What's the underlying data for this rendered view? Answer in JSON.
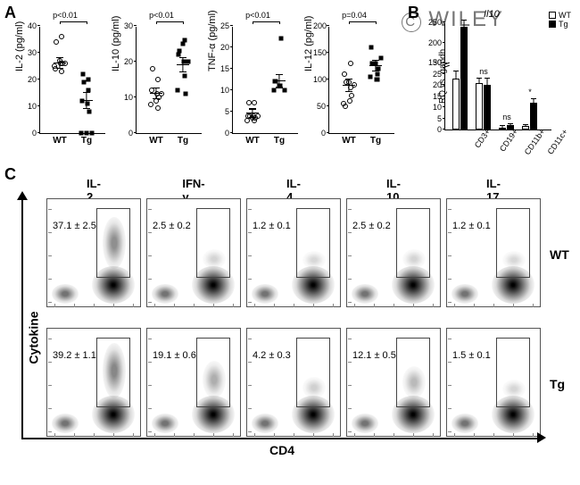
{
  "watermark": "WILEY",
  "panelA": {
    "label": "A",
    "plots": [
      {
        "ylabel": "IL-2 (pg/ml)",
        "pval": "p<0.01",
        "ymax": 40,
        "ytick_step": 10,
        "groups": [
          "WT",
          "Tg"
        ],
        "wt_points": [
          25,
          27,
          26,
          24,
          26,
          36,
          34,
          23,
          26
        ],
        "tg_points": [
          0,
          0,
          0,
          12,
          11,
          16,
          22,
          20,
          8,
          19
        ],
        "wt_mean": 26,
        "wt_err": 2,
        "tg_mean": 12,
        "tg_err": 3
      },
      {
        "ylabel": "IL-10 (pg/ml)",
        "pval": "p<0.01",
        "ymax": 30,
        "ytick_step": 10,
        "groups": [
          "WT",
          "Tg"
        ],
        "wt_points": [
          8,
          9,
          11,
          12,
          11,
          15,
          18,
          7,
          10
        ],
        "tg_points": [
          12,
          25,
          20,
          22,
          20,
          16,
          23,
          26,
          11
        ],
        "wt_mean": 11,
        "wt_err": 1.5,
        "tg_mean": 19,
        "tg_err": 2
      },
      {
        "ylabel": "TNF-α (pg/ml)",
        "pval": "p<0.01",
        "ymax": 25,
        "ytick_step": 5,
        "groups": [
          "WT",
          "Tg"
        ],
        "wt_points": [
          3,
          3.5,
          4,
          4,
          4,
          3,
          7,
          7,
          3.5,
          4
        ],
        "tg_points": [
          10,
          11,
          10,
          12,
          11,
          22,
          12
        ],
        "wt_mean": 4.5,
        "wt_err": 1,
        "tg_mean": 12,
        "tg_err": 1.5
      },
      {
        "ylabel": "IL-12 (pg/ml)",
        "pval": "p=0.04",
        "ymax": 200,
        "ytick_step": 50,
        "groups": [
          "WT",
          "Tg"
        ],
        "wt_points": [
          55,
          95,
          90,
          110,
          60,
          85,
          50,
          130,
          70,
          95
        ],
        "tg_points": [
          105,
          130,
          140,
          160,
          100,
          110,
          130,
          100,
          120
        ],
        "wt_mean": 88,
        "wt_err": 12,
        "tg_mean": 125,
        "tg_err": 10
      }
    ]
  },
  "panelB": {
    "label": "B",
    "title": "Il10",
    "ylabel": "RQ vs. gapdh",
    "categories": [
      "CD3+",
      "CD19+",
      "CD11b+",
      "CD11c+"
    ],
    "series": [
      {
        "name": "WT",
        "color": "#ffffff"
      },
      {
        "name": "Tg",
        "color": "#000000"
      }
    ],
    "yticks_lower": [
      0,
      5,
      10,
      15,
      20,
      25,
      30
    ],
    "yticks_upper": [
      150,
      200,
      250
    ],
    "break_at": 30,
    "values_wt": [
      23,
      21,
      1,
      1.5
    ],
    "values_tg": [
      240,
      20,
      2,
      12
    ],
    "err_wt": [
      3,
      2,
      0.5,
      0.5
    ],
    "err_tg": [
      15,
      3,
      0.5,
      1.5
    ],
    "sig": [
      "",
      "ns",
      "ns",
      "*"
    ]
  },
  "panelC": {
    "label": "C",
    "columns": [
      "IL-2",
      "IFN-γ",
      "IL-4",
      "IL-10",
      "IL-17"
    ],
    "rows": [
      "WT",
      "Tg"
    ],
    "yaxis": "Cytokine",
    "xaxis": "CD4",
    "stats": [
      [
        "37.1 ± 2.5",
        "2.5 ± 0.2",
        "1.2 ± 0.1",
        "2.5 ± 0.2",
        "1.2 ± 0.1"
      ],
      [
        "39.2 ± 1.1",
        "19.1 ± 0.6",
        "4.2 ± 0.3",
        "12.1 ± 0.5",
        "1.5 ± 0.1"
      ]
    ],
    "gate_density_upper": [
      [
        0.5,
        0.05,
        0.03,
        0.05,
        0.03
      ],
      [
        0.55,
        0.3,
        0.08,
        0.22,
        0.04
      ]
    ]
  },
  "colors": {
    "bg": "#ffffff",
    "axis": "#000000",
    "wt": "#ffffff",
    "tg": "#000000"
  }
}
